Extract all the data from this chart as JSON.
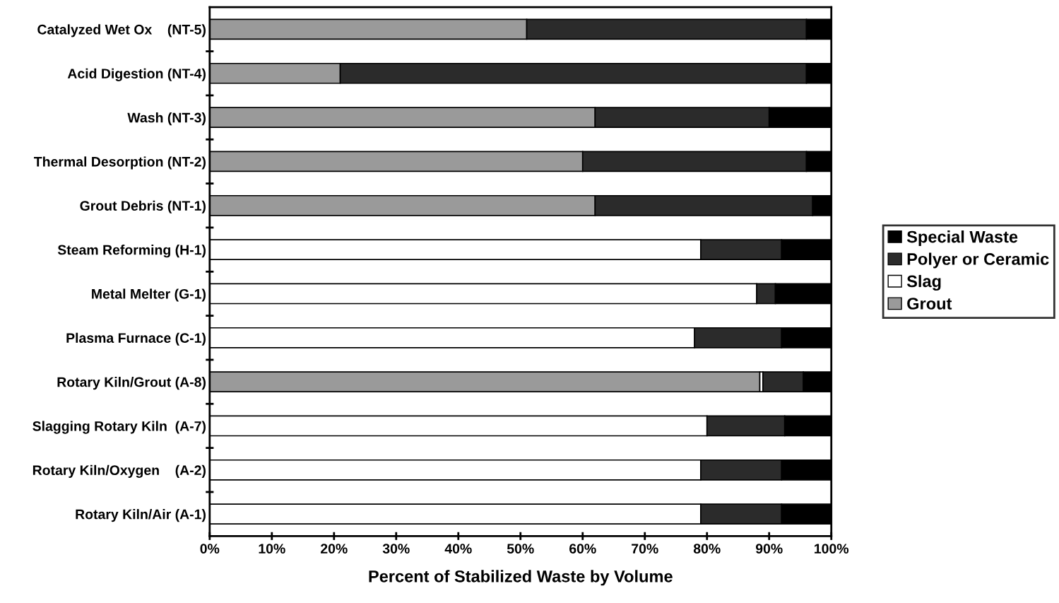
{
  "chart_data": {
    "type": "bar",
    "orientation": "horizontal",
    "stacked": true,
    "xlabel": "Percent of Stabilized Waste by Volume",
    "categories": [
      "Catalyzed Wet Ox    (NT-5)",
      "Acid Digestion (NT-4)",
      "Wash (NT-3)",
      "Thermal Desorption (NT-2)",
      "Grout Debris (NT-1)",
      "Steam Reforming (H-1)",
      "Metal Melter (G-1)",
      "Plasma Furnace (C-1)",
      "Rotary Kiln/Grout (A-8)",
      "Slagging Rotary Kiln  (A-7)",
      "Rotary Kiln/Oxygen    (A-2)",
      "Rotary Kiln/Air (A-1)"
    ],
    "series": [
      {
        "name": "Grout",
        "color": "#9a9a9a",
        "values": [
          51,
          21,
          62,
          60,
          62,
          0,
          0,
          0,
          88.5,
          0,
          0,
          0
        ]
      },
      {
        "name": "Slag",
        "color": "#ffffff",
        "values": [
          0,
          0,
          0,
          0,
          0,
          79,
          88,
          78,
          0.5,
          80,
          79,
          79
        ]
      },
      {
        "name": "Polyer or Ceramic",
        "color": "#2b2b2b",
        "values": [
          45,
          75,
          28,
          36,
          35,
          13,
          3,
          14,
          6.5,
          12.5,
          13,
          13
        ]
      },
      {
        "name": "Special Waste",
        "color": "#000000",
        "values": [
          4,
          4,
          10,
          4,
          3,
          8,
          9,
          8,
          4.5,
          7.5,
          8,
          8
        ]
      }
    ],
    "xlim": [
      0,
      100
    ],
    "xticks": [
      {
        "value": 0,
        "label": "0%"
      },
      {
        "value": 10,
        "label": "10%"
      },
      {
        "value": 20,
        "label": "20%"
      },
      {
        "value": 30,
        "label": "30%"
      },
      {
        "value": 40,
        "label": "40%"
      },
      {
        "value": 50,
        "label": "50%"
      },
      {
        "value": 60,
        "label": "60%"
      },
      {
        "value": 70,
        "label": "70%"
      },
      {
        "value": 80,
        "label": "80%"
      },
      {
        "value": 90,
        "label": "90%"
      },
      {
        "value": 100,
        "label": "100%"
      }
    ],
    "grid": false,
    "legend": "right"
  }
}
